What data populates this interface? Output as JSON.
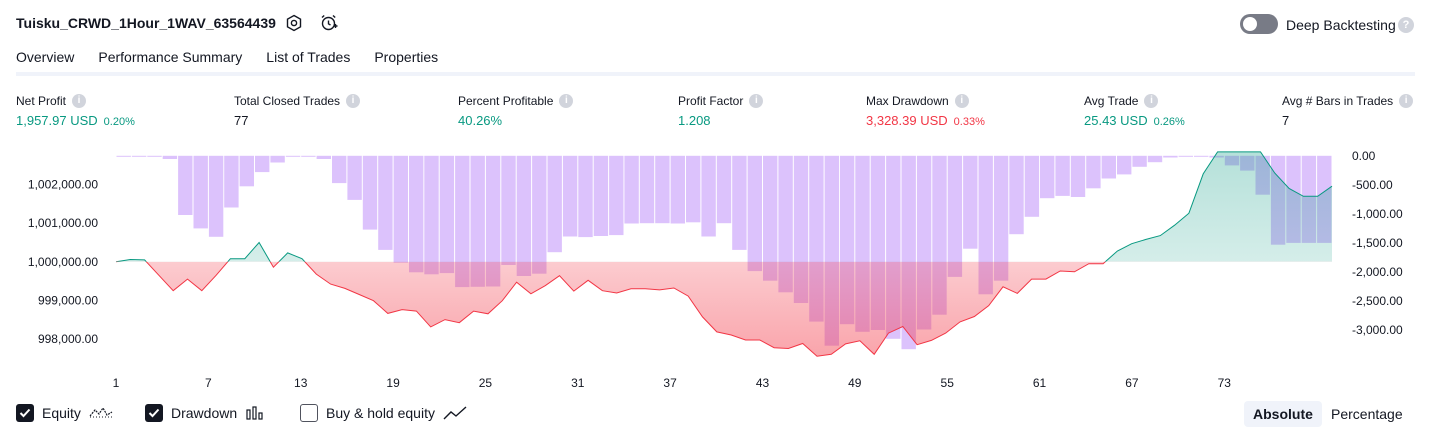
{
  "header": {
    "strategy_name": "Tuisku_CRWD_1Hour_1WAV_63564439",
    "settings_icon": "gear-icon",
    "alert_icon": "alarm-clock-plus-icon",
    "deep_backtesting_label": "Deep Backtesting",
    "deep_backtesting_enabled": false,
    "help_glyph": "?"
  },
  "tabs": [
    {
      "label": "Overview",
      "active": true
    },
    {
      "label": "Performance Summary",
      "active": false
    },
    {
      "label": "List of Trades",
      "active": false
    },
    {
      "label": "Properties",
      "active": false
    }
  ],
  "metrics": [
    {
      "label": "Net Profit",
      "value": "1,957.97 USD",
      "pct": "0.20%",
      "color": "#089981"
    },
    {
      "label": "Total Closed Trades",
      "value": "77",
      "pct": "",
      "color": "#131722"
    },
    {
      "label": "Percent Profitable",
      "value": "40.26%",
      "pct": "",
      "color": "#089981"
    },
    {
      "label": "Profit Factor",
      "value": "1.208",
      "pct": "",
      "color": "#089981"
    },
    {
      "label": "Max Drawdown",
      "value": "3,328.39 USD",
      "pct": "0.33%",
      "color": "#f23645"
    },
    {
      "label": "Avg Trade",
      "value": "25.43 USD",
      "pct": "0.26%",
      "color": "#089981"
    },
    {
      "label": "Avg # Bars in Trades",
      "value": "7",
      "pct": "",
      "color": "#131722"
    }
  ],
  "chart_data": {
    "type": "line",
    "x_ticks": [
      "1",
      "7",
      "13",
      "19",
      "25",
      "31",
      "37",
      "43",
      "49",
      "55",
      "61",
      "67",
      "73"
    ],
    "left_axis_ticks": [
      "1,002,000.00",
      "1,001,000.00",
      "1,000,000.00",
      "999,000.00",
      "998,000.00"
    ],
    "right_axis_ticks": [
      "0.00",
      "-500.00",
      "-1,000.00",
      "-1,500.00",
      "-2,000.00",
      "-2,500.00",
      "-3,000.00"
    ],
    "ylim_left": [
      997400,
      1002900
    ],
    "ylim_right": [
      -3550,
      100
    ],
    "baseline_equity": 1000000,
    "colors": {
      "profit": "#089981",
      "loss": "#f23645",
      "drawdown": "#c9a2fb"
    },
    "series": [
      {
        "name": "Equity",
        "values": [
          1000000,
          1000060,
          1000050,
          999650,
          999250,
          999550,
          999250,
          999650,
          1000080,
          1000080,
          1000500,
          999860,
          1000230,
          1000080,
          999680,
          999420,
          999310,
          999150,
          998990,
          998660,
          998760,
          998720,
          998310,
          998500,
          998420,
          998720,
          998650,
          998990,
          999470,
          999170,
          999380,
          999640,
          999240,
          999520,
          999250,
          999190,
          999300,
          999300,
          999270,
          999320,
          999110,
          998570,
          998180,
          998100,
          997970,
          997970,
          997770,
          997750,
          997880,
          997550,
          997600,
          997870,
          997950,
          997600,
          998150,
          998320,
          997850,
          997960,
          998150,
          998440,
          998580,
          998860,
          999350,
          999180,
          999550,
          999550,
          999760,
          999740,
          999950,
          999950,
          1000280,
          1000470,
          1000580,
          1000680,
          1000950,
          1001260,
          1002280,
          1002850,
          1002850,
          1002850,
          1002850,
          1002300,
          1001900,
          1001700,
          1001700,
          1001960
        ]
      },
      {
        "name": "Drawdown",
        "values": [
          -10,
          -10,
          -10,
          -55,
          -1020,
          -1250,
          -1395,
          -890,
          -525,
          -280,
          -115,
          -15,
          -10,
          -55,
          -470,
          -760,
          -1270,
          -1620,
          -1840,
          -2005,
          -2040,
          -2020,
          -2260,
          -2255,
          -2250,
          -1880,
          -2070,
          -2030,
          -1660,
          -1390,
          -1400,
          -1380,
          -1365,
          -1165,
          -1160,
          -1160,
          -1165,
          -1145,
          -1390,
          -1160,
          -1620,
          -1985,
          -2150,
          -2350,
          -2535,
          -2855,
          -3270,
          -2900,
          -3030,
          -3000,
          -3150,
          -3330,
          -2990,
          -2735,
          -2085,
          -1600,
          -2385,
          -2150,
          -1350,
          -1050,
          -730,
          -690,
          -710,
          -560,
          -390,
          -320,
          -190,
          -110,
          -30,
          -10,
          -10,
          -30,
          -165,
          -255,
          -670,
          -1530,
          -1500,
          -1500,
          -1500
        ]
      }
    ]
  },
  "legend": {
    "equity": {
      "label": "Equity",
      "checked": true
    },
    "drawdown": {
      "label": "Drawdown",
      "checked": true
    },
    "buyhold": {
      "label": "Buy & hold equity",
      "checked": false
    }
  },
  "view_toggle": {
    "absolute": "Absolute",
    "percentage": "Percentage",
    "active": "absolute"
  }
}
